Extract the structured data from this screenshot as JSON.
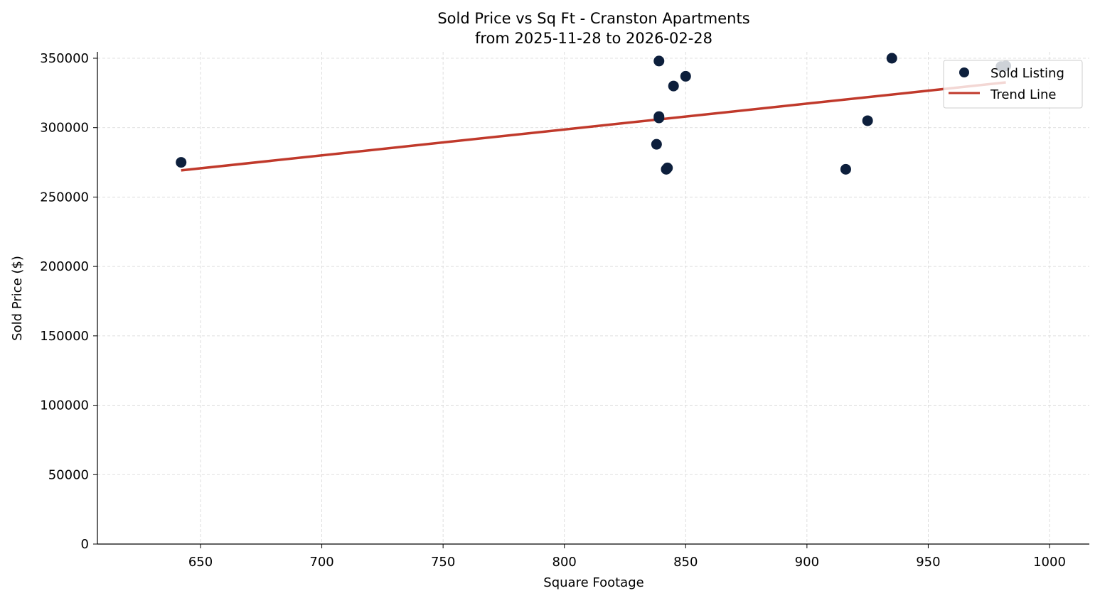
{
  "chart_data": {
    "type": "scatter",
    "title": "Sold Price vs Sq Ft - Cranston Apartments",
    "subtitle": "from 2025-11-28 to 2026-02-28",
    "xlabel": "Square Footage",
    "ylabel": "Sold Price ($)",
    "xlim": [
      608,
      1016
    ],
    "ylim": [
      0,
      355000
    ],
    "xticks": [
      650,
      700,
      750,
      800,
      850,
      900,
      950,
      1000
    ],
    "yticks": [
      0,
      50000,
      100000,
      150000,
      200000,
      250000,
      300000,
      350000
    ],
    "grid": true,
    "legend_position": "top-right",
    "series": [
      {
        "name": "Sold Listing",
        "kind": "scatter",
        "color": "#0d1f3c",
        "points": [
          {
            "x": 642,
            "y": 275000
          },
          {
            "x": 839,
            "y": 348000
          },
          {
            "x": 850,
            "y": 337000
          },
          {
            "x": 845,
            "y": 330000
          },
          {
            "x": 839,
            "y": 308000
          },
          {
            "x": 839,
            "y": 307000
          },
          {
            "x": 838,
            "y": 288000
          },
          {
            "x": 842,
            "y": 270000
          },
          {
            "x": 842.5,
            "y": 271000
          },
          {
            "x": 916,
            "y": 270000
          },
          {
            "x": 925,
            "y": 305000
          },
          {
            "x": 935,
            "y": 350000
          },
          {
            "x": 980,
            "y": 344000
          },
          {
            "x": 982,
            "y": 344500
          }
        ]
      },
      {
        "name": "Trend Line",
        "kind": "line",
        "color": "#c0392b",
        "points": [
          {
            "x": 642,
            "y": 269200
          },
          {
            "x": 982,
            "y": 332600
          }
        ]
      }
    ]
  }
}
